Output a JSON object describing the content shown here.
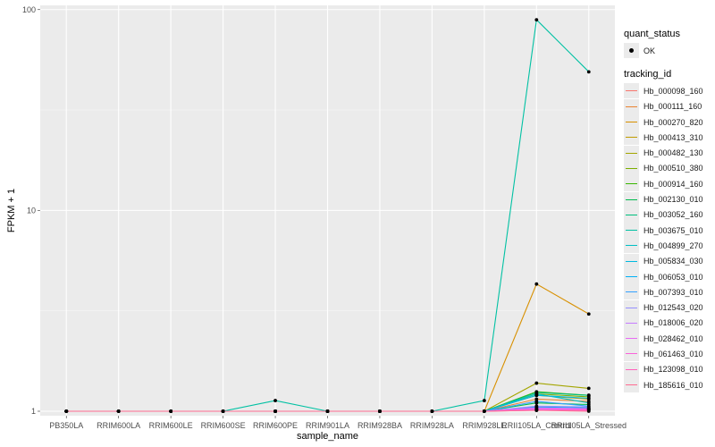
{
  "chart_data": {
    "type": "line",
    "xlabel": "sample_name",
    "ylabel": "FPKM + 1",
    "y_scale": "log10",
    "ylim": [
      0.95,
      105
    ],
    "y_ticks": [
      {
        "value": 1,
        "label": "1"
      },
      {
        "value": 10,
        "label": "10"
      },
      {
        "value": 100,
        "label": "100"
      }
    ],
    "categories": [
      "PB350LA",
      "RRIM600LA",
      "RRIM600LE",
      "RRIM600SE",
      "RRIM600PE",
      "RRIM901LA",
      "RRIM928BA",
      "RRIM928LA",
      "RRIM928LE",
      "RRII105LA_Control",
      "RRII105LA_Stressed"
    ],
    "tick_labels": [
      "PB350LA",
      "RRIM600LA",
      "RRIM600LE",
      "RRIM600SE",
      "RRIM600PE",
      "RRIM901LA",
      "RRIM928BA",
      "RRIM928LA",
      "RRIM928LE",
      "RRII105LA_Control",
      "RRII105LA_Stressed"
    ],
    "grid": true,
    "legend_position": "right",
    "legend_shape": {
      "title": "quant_status",
      "entries": [
        "OK"
      ]
    },
    "legend_color_title": "tracking_id",
    "series": [
      {
        "name": "Hb_000098_160",
        "color": "#F8766D",
        "values": [
          1,
          1,
          1,
          1,
          1,
          1,
          1,
          1,
          1,
          1.02,
          1.02
        ]
      },
      {
        "name": "Hb_000111_160",
        "color": "#EA8331",
        "values": [
          1,
          1,
          1,
          1,
          1,
          1,
          1,
          1,
          1,
          1.15,
          1.12
        ]
      },
      {
        "name": "Hb_000270_820",
        "color": "#D89000",
        "values": [
          1,
          1,
          1,
          1,
          1,
          1,
          1,
          1,
          1,
          4.3,
          3.05
        ]
      },
      {
        "name": "Hb_000413_310",
        "color": "#C09B00",
        "values": [
          1,
          1,
          1,
          1,
          1,
          1,
          1,
          1,
          1,
          1.2,
          1.15
        ]
      },
      {
        "name": "Hb_000482_130",
        "color": "#A3A500",
        "values": [
          1,
          1,
          1,
          1,
          1,
          1,
          1,
          1,
          1,
          1.38,
          1.3
        ]
      },
      {
        "name": "Hb_000510_380",
        "color": "#7CAE00",
        "values": [
          1,
          1,
          1,
          1,
          1,
          1,
          1,
          1,
          1,
          1.22,
          1.18
        ]
      },
      {
        "name": "Hb_000914_160",
        "color": "#39B600",
        "values": [
          1,
          1,
          1,
          1,
          1,
          1,
          1,
          1,
          1,
          1.25,
          1.2
        ]
      },
      {
        "name": "Hb_002130_010",
        "color": "#00BB4E",
        "values": [
          1,
          1,
          1,
          1,
          1,
          1,
          1,
          1,
          1,
          1.1,
          1.08
        ]
      },
      {
        "name": "Hb_003052_160",
        "color": "#00BF7D",
        "values": [
          1,
          1,
          1,
          1,
          1,
          1,
          1,
          1,
          1,
          1.24,
          1.2
        ]
      },
      {
        "name": "Hb_003675_010",
        "color": "#00C1A3",
        "values": [
          1,
          1,
          1,
          1,
          1.13,
          1,
          1,
          1,
          1.13,
          89,
          49
        ]
      },
      {
        "name": "Hb_004899_270",
        "color": "#00BFC4",
        "values": [
          1,
          1,
          1,
          1,
          1,
          1,
          1,
          1,
          1,
          1.22,
          1.1
        ]
      },
      {
        "name": "Hb_005834_030",
        "color": "#00BAE0",
        "values": [
          1,
          1,
          1,
          1,
          1,
          1,
          1,
          1,
          1,
          1.2,
          1.16
        ]
      },
      {
        "name": "Hb_006053_010",
        "color": "#00B0F6",
        "values": [
          1,
          1,
          1,
          1,
          1,
          1,
          1,
          1,
          1,
          1.05,
          1.04
        ]
      },
      {
        "name": "Hb_007393_010",
        "color": "#35A2FF",
        "values": [
          1,
          1,
          1,
          1,
          1,
          1,
          1,
          1,
          1,
          1.12,
          1.06
        ]
      },
      {
        "name": "Hb_012543_020",
        "color": "#9590FF",
        "values": [
          1,
          1,
          1,
          1,
          1,
          1,
          1,
          1,
          1,
          1.06,
          1.05
        ]
      },
      {
        "name": "Hb_018006_020",
        "color": "#C77CFF",
        "values": [
          1,
          1,
          1,
          1,
          1,
          1,
          1,
          1,
          1,
          1.03,
          1.03
        ]
      },
      {
        "name": "Hb_028462_010",
        "color": "#E76BF3",
        "values": [
          1,
          1,
          1,
          1,
          1,
          1,
          1,
          1,
          1,
          1.04,
          1.03
        ]
      },
      {
        "name": "Hb_061463_010",
        "color": "#FA62DB",
        "values": [
          1,
          1,
          1,
          1,
          1,
          1,
          1,
          1,
          1,
          1.02,
          1.02
        ]
      },
      {
        "name": "Hb_123098_010",
        "color": "#FF62BC",
        "values": [
          1,
          1,
          1,
          1,
          1,
          1,
          1,
          1,
          1,
          1.01,
          1.01
        ]
      },
      {
        "name": "Hb_185616_010",
        "color": "#FF6C91",
        "values": [
          1,
          1,
          1,
          1,
          1,
          1,
          1,
          1,
          1,
          1.01,
          1.0
        ]
      }
    ]
  },
  "colors": {
    "panel": "#EBEBEB",
    "grid_major": "#FFFFFF",
    "point": "#000000"
  }
}
